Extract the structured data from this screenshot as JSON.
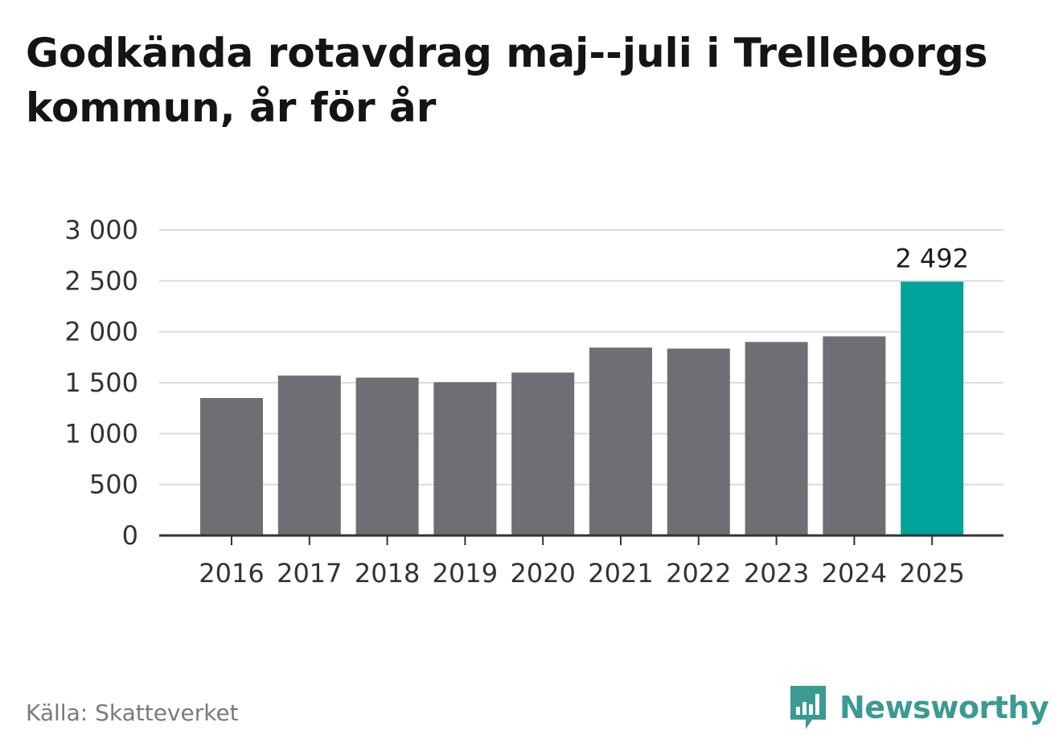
{
  "header": {
    "title": "Godkända rotavdrag maj--juli i Trelleborgs kommun, år för år"
  },
  "footer": {
    "source": "Källa: Skatteverket",
    "brand_name": "Newsworthy",
    "brand_icon": "bar-chart-speech-bubble-icon"
  },
  "colors": {
    "bar_default": "#6f6e74",
    "bar_highlight": "#00a39a",
    "brand": "#3a9a94"
  },
  "chart_data": {
    "type": "bar",
    "title": "Godkända rotavdrag maj--juli i Trelleborgs kommun, år för år",
    "xlabel": "",
    "ylabel": "",
    "categories": [
      "2016",
      "2017",
      "2018",
      "2019",
      "2020",
      "2021",
      "2022",
      "2023",
      "2024",
      "2025"
    ],
    "values": [
      1350,
      1570,
      1550,
      1505,
      1600,
      1845,
      1835,
      1900,
      1955,
      2492
    ],
    "ylim": [
      0,
      3000
    ],
    "yticks": [
      0,
      500,
      1000,
      1500,
      2000,
      2500,
      3000
    ],
    "ytick_labels": [
      "0",
      "500",
      "1 000",
      "1 500",
      "2 000",
      "2 500",
      "3 000"
    ],
    "grid": true,
    "highlight_index": 9,
    "data_labels": [
      {
        "index": 9,
        "text": "2 492"
      }
    ]
  }
}
